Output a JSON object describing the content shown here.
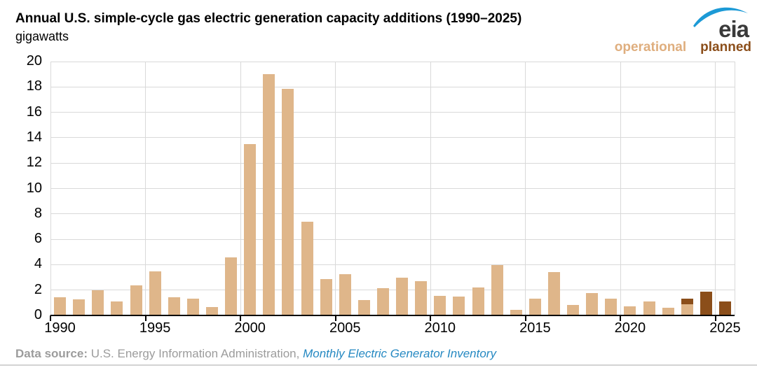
{
  "header": {
    "title": "Annual U.S. simple-cycle gas electric generation capacity additions (1990–2025)",
    "subtitle": "gigawatts",
    "logo_text": "eia"
  },
  "legend": {
    "operational_label": "operational",
    "planned_label": "planned"
  },
  "colors": {
    "operational_bar": "#dfb68a",
    "planned_bar": "#8b4e1a",
    "legend_operational_text": "#dfae7e",
    "legend_planned_text": "#8b4e1a",
    "gridline": "#d9d9d9",
    "axis": "#000000",
    "footer_text": "#9c9c9c",
    "link_blue": "#2689c2",
    "logo_swoosh_blue": "#1c9ad6"
  },
  "chart_data": {
    "type": "bar",
    "stacked": true,
    "title": "Annual U.S. simple-cycle gas electric generation capacity additions (1990–2025)",
    "xlabel": "",
    "ylabel": "gigawatts",
    "ylim": [
      0,
      20
    ],
    "ytick_step": 2,
    "grid": true,
    "legend_position": "top-right",
    "x": [
      1990,
      1991,
      1992,
      1993,
      1994,
      1995,
      1996,
      1997,
      1998,
      1999,
      2000,
      2001,
      2002,
      2003,
      2004,
      2005,
      2006,
      2007,
      2008,
      2009,
      2010,
      2011,
      2012,
      2013,
      2014,
      2015,
      2016,
      2017,
      2018,
      2019,
      2020,
      2021,
      2022,
      2023,
      2024,
      2025
    ],
    "xtick_labels": [
      "1990",
      "1995",
      "2000",
      "2005",
      "2010",
      "2015",
      "2020",
      "2025"
    ],
    "series": [
      {
        "name": "operational",
        "color": "#dfb68a",
        "values": [
          1.45,
          1.25,
          2.0,
          1.1,
          2.35,
          3.45,
          1.45,
          1.35,
          0.65,
          4.6,
          13.5,
          19.0,
          17.85,
          7.4,
          2.85,
          3.25,
          1.2,
          2.15,
          2.95,
          2.7,
          1.55,
          1.5,
          2.2,
          3.95,
          0.45,
          1.3,
          3.4,
          0.85,
          1.75,
          1.3,
          0.7,
          1.1,
          0.6,
          0.9,
          0,
          0
        ]
      },
      {
        "name": "planned",
        "color": "#8b4e1a",
        "values": [
          0,
          0,
          0,
          0,
          0,
          0,
          0,
          0,
          0,
          0,
          0,
          0,
          0,
          0,
          0,
          0,
          0,
          0,
          0,
          0,
          0,
          0,
          0,
          0,
          0,
          0,
          0,
          0,
          0,
          0,
          0,
          0,
          0,
          0.45,
          1.85,
          1.1
        ]
      }
    ]
  },
  "footer": {
    "label": "Data source:",
    "text": " U.S. Energy Information Administration, ",
    "link": "Monthly Electric Generator Inventory"
  }
}
